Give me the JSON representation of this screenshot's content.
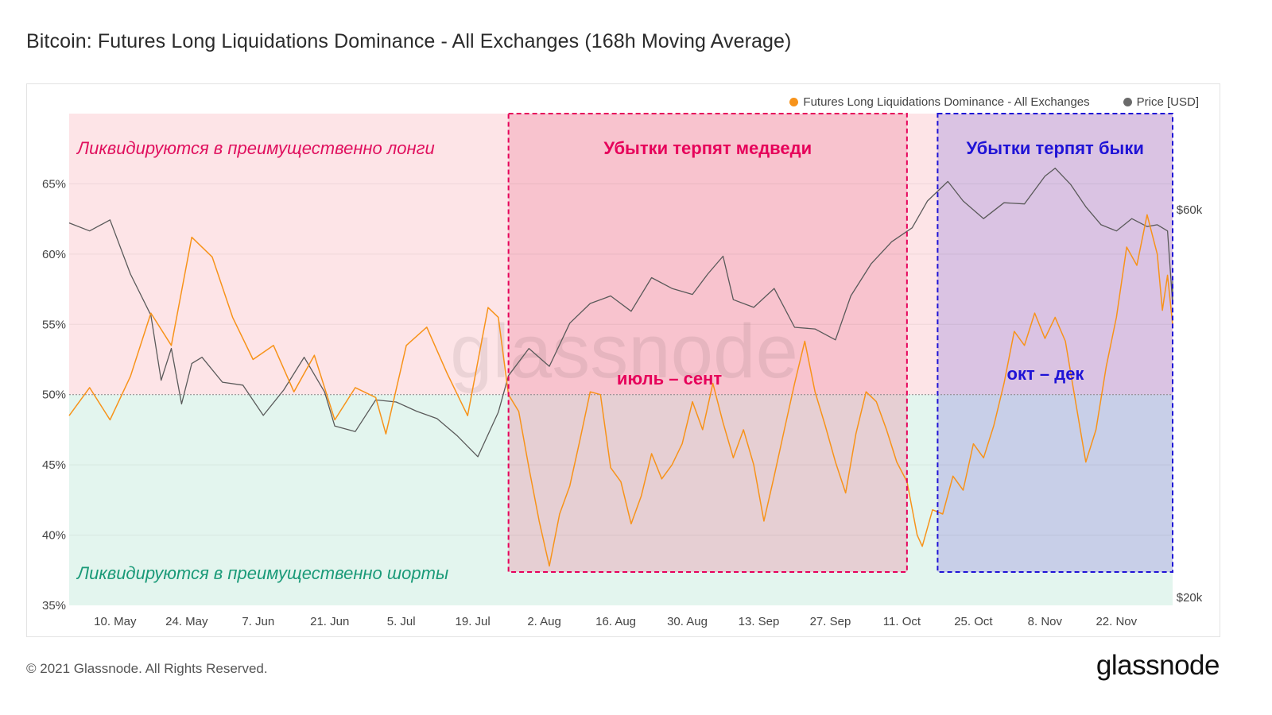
{
  "page": {
    "title": "Bitcoin: Futures Long Liquidations Dominance - All Exchanges (168h Moving Average)",
    "copyright": "© 2021 Glassnode. All Rights Reserved.",
    "brand": "glassnode",
    "watermark": "glassnode"
  },
  "colors": {
    "dominance": "#f7931a",
    "price": "#555555",
    "upper_zone": "#fde4e7",
    "lower_zone": "#e3f5ee",
    "bear_box": "#e6005a",
    "bull_box": "#1f13d6"
  },
  "annotations": {
    "upper_zone": "Ликвидируются в преимущественно лонги",
    "lower_zone": "Ликвидируются в преимущественно шорты",
    "bear_box_title": "Убытки терпят медведи",
    "bear_box_period": "июль – сент",
    "bull_box_title": "Убытки терпят быки",
    "bull_box_period": "окт – дек"
  },
  "chart_data": {
    "type": "line",
    "title": "Bitcoin: Futures Long Liquidations Dominance - All Exchanges (168h Moving Average)",
    "legend": [
      "Futures Long Liquidations Dominance - All Exchanges",
      "Price [USD]"
    ],
    "legend_position": "top-right",
    "grid": true,
    "x_ticks": [
      "10. May",
      "24. May",
      "7. Jun",
      "21. Jun",
      "5. Jul",
      "19. Jul",
      "2. Aug",
      "16. Aug",
      "30. Aug",
      "13. Sep",
      "27. Sep",
      "11. Oct",
      "25. Oct",
      "8. Nov",
      "22. Nov"
    ],
    "xlim": [
      "2021-05-01",
      "2021-12-03"
    ],
    "y_left": {
      "ticks": [
        "35%",
        "40%",
        "45%",
        "50%",
        "55%",
        "60%",
        "65%"
      ],
      "ylim": [
        35,
        70
      ],
      "reference_line": 50
    },
    "y_right": {
      "ticks": [
        "$20k",
        "$60k"
      ],
      "scale": "log"
    },
    "series": [
      {
        "name": "Futures Long Liquidations Dominance - All Exchanges",
        "unit": "%",
        "points": [
          [
            "2021-05-01",
            48.5
          ],
          [
            "2021-05-05",
            50.5
          ],
          [
            "2021-05-09",
            48.2
          ],
          [
            "2021-05-13",
            51.3
          ],
          [
            "2021-05-17",
            55.8
          ],
          [
            "2021-05-21",
            53.5
          ],
          [
            "2021-05-25",
            61.2
          ],
          [
            "2021-05-29",
            59.8
          ],
          [
            "2021-06-02",
            55.5
          ],
          [
            "2021-06-06",
            52.5
          ],
          [
            "2021-06-10",
            53.5
          ],
          [
            "2021-06-14",
            50.2
          ],
          [
            "2021-06-18",
            52.8
          ],
          [
            "2021-06-22",
            48.2
          ],
          [
            "2021-06-26",
            50.5
          ],
          [
            "2021-06-30",
            49.8
          ],
          [
            "2021-07-02",
            47.2
          ],
          [
            "2021-07-06",
            53.5
          ],
          [
            "2021-07-10",
            54.8
          ],
          [
            "2021-07-14",
            51.5
          ],
          [
            "2021-07-18",
            48.5
          ],
          [
            "2021-07-22",
            56.2
          ],
          [
            "2021-07-24",
            55.5
          ],
          [
            "2021-07-26",
            50.0
          ],
          [
            "2021-07-28",
            48.8
          ],
          [
            "2021-07-30",
            44.8
          ],
          [
            "2021-08-01",
            41.0
          ],
          [
            "2021-08-03",
            37.8
          ],
          [
            "2021-08-05",
            41.5
          ],
          [
            "2021-08-07",
            43.5
          ],
          [
            "2021-08-09",
            46.8
          ],
          [
            "2021-08-11",
            50.2
          ],
          [
            "2021-08-13",
            50.0
          ],
          [
            "2021-08-15",
            44.8
          ],
          [
            "2021-08-17",
            43.8
          ],
          [
            "2021-08-19",
            40.8
          ],
          [
            "2021-08-21",
            42.8
          ],
          [
            "2021-08-23",
            45.8
          ],
          [
            "2021-08-25",
            44.0
          ],
          [
            "2021-08-27",
            45.0
          ],
          [
            "2021-08-29",
            46.5
          ],
          [
            "2021-08-31",
            49.5
          ],
          [
            "2021-09-02",
            47.5
          ],
          [
            "2021-09-04",
            50.8
          ],
          [
            "2021-09-06",
            48.0
          ],
          [
            "2021-09-08",
            45.5
          ],
          [
            "2021-09-10",
            47.5
          ],
          [
            "2021-09-12",
            45.0
          ],
          [
            "2021-09-14",
            41.0
          ],
          [
            "2021-09-16",
            44.2
          ],
          [
            "2021-09-18",
            47.5
          ],
          [
            "2021-09-20",
            50.8
          ],
          [
            "2021-09-22",
            53.8
          ],
          [
            "2021-09-24",
            50.2
          ],
          [
            "2021-09-26",
            47.8
          ],
          [
            "2021-09-28",
            45.2
          ],
          [
            "2021-09-30",
            43.0
          ],
          [
            "2021-10-02",
            47.2
          ],
          [
            "2021-10-04",
            50.2
          ],
          [
            "2021-10-06",
            49.5
          ],
          [
            "2021-10-08",
            47.5
          ],
          [
            "2021-10-10",
            45.2
          ],
          [
            "2021-10-12",
            43.8
          ],
          [
            "2021-10-14",
            40.0
          ],
          [
            "2021-10-15",
            39.2
          ],
          [
            "2021-10-17",
            41.8
          ],
          [
            "2021-10-19",
            41.5
          ],
          [
            "2021-10-21",
            44.2
          ],
          [
            "2021-10-23",
            43.2
          ],
          [
            "2021-10-25",
            46.5
          ],
          [
            "2021-10-27",
            45.5
          ],
          [
            "2021-10-29",
            47.8
          ],
          [
            "2021-10-31",
            50.8
          ],
          [
            "2021-11-02",
            54.5
          ],
          [
            "2021-11-04",
            53.5
          ],
          [
            "2021-11-06",
            55.8
          ],
          [
            "2021-11-08",
            54.0
          ],
          [
            "2021-11-10",
            55.5
          ],
          [
            "2021-11-12",
            53.8
          ],
          [
            "2021-11-14",
            49.5
          ],
          [
            "2021-11-16",
            45.2
          ],
          [
            "2021-11-18",
            47.5
          ],
          [
            "2021-11-20",
            52.0
          ],
          [
            "2021-11-22",
            55.5
          ],
          [
            "2021-11-24",
            60.5
          ],
          [
            "2021-11-26",
            59.2
          ],
          [
            "2021-11-28",
            62.8
          ],
          [
            "2021-11-30",
            60.0
          ],
          [
            "2021-12-01",
            56.0
          ],
          [
            "2021-12-02",
            58.5
          ],
          [
            "2021-12-03",
            55.0
          ]
        ]
      },
      {
        "name": "Price [USD]",
        "unit": "USD",
        "points": [
          [
            "2021-05-01",
            57800
          ],
          [
            "2021-05-05",
            56500
          ],
          [
            "2021-05-09",
            58300
          ],
          [
            "2021-05-13",
            50000
          ],
          [
            "2021-05-17",
            44500
          ],
          [
            "2021-05-19",
            37000
          ],
          [
            "2021-05-21",
            40500
          ],
          [
            "2021-05-23",
            34600
          ],
          [
            "2021-05-25",
            38800
          ],
          [
            "2021-05-27",
            39500
          ],
          [
            "2021-05-31",
            36800
          ],
          [
            "2021-06-04",
            36500
          ],
          [
            "2021-06-08",
            33500
          ],
          [
            "2021-06-12",
            36000
          ],
          [
            "2021-06-16",
            39500
          ],
          [
            "2021-06-20",
            35800
          ],
          [
            "2021-06-22",
            32500
          ],
          [
            "2021-06-26",
            32000
          ],
          [
            "2021-06-30",
            35000
          ],
          [
            "2021-07-04",
            34800
          ],
          [
            "2021-07-08",
            33900
          ],
          [
            "2021-07-12",
            33200
          ],
          [
            "2021-07-16",
            31600
          ],
          [
            "2021-07-20",
            29800
          ],
          [
            "2021-07-24",
            33800
          ],
          [
            "2021-07-26",
            37500
          ],
          [
            "2021-07-30",
            40500
          ],
          [
            "2021-08-03",
            38500
          ],
          [
            "2021-08-07",
            43500
          ],
          [
            "2021-08-11",
            46000
          ],
          [
            "2021-08-15",
            47000
          ],
          [
            "2021-08-19",
            45000
          ],
          [
            "2021-08-23",
            49500
          ],
          [
            "2021-08-27",
            48000
          ],
          [
            "2021-08-31",
            47200
          ],
          [
            "2021-09-03",
            50000
          ],
          [
            "2021-09-06",
            52600
          ],
          [
            "2021-09-08",
            46500
          ],
          [
            "2021-09-12",
            45500
          ],
          [
            "2021-09-16",
            48000
          ],
          [
            "2021-09-20",
            43000
          ],
          [
            "2021-09-24",
            42800
          ],
          [
            "2021-09-28",
            41500
          ],
          [
            "2021-10-01",
            47000
          ],
          [
            "2021-10-05",
            51500
          ],
          [
            "2021-10-09",
            54800
          ],
          [
            "2021-10-13",
            57000
          ],
          [
            "2021-10-16",
            61500
          ],
          [
            "2021-10-20",
            65000
          ],
          [
            "2021-10-23",
            61500
          ],
          [
            "2021-10-27",
            58500
          ],
          [
            "2021-10-31",
            61200
          ],
          [
            "2021-11-04",
            61000
          ],
          [
            "2021-11-08",
            66000
          ],
          [
            "2021-11-10",
            67500
          ],
          [
            "2021-11-13",
            64500
          ],
          [
            "2021-11-16",
            60500
          ],
          [
            "2021-11-19",
            57500
          ],
          [
            "2021-11-22",
            56500
          ],
          [
            "2021-11-25",
            58500
          ],
          [
            "2021-11-28",
            57200
          ],
          [
            "2021-11-30",
            57500
          ],
          [
            "2021-12-02",
            56500
          ],
          [
            "2021-12-03",
            46000
          ],
          [
            "2021-12-03",
            49000
          ]
        ]
      }
    ]
  }
}
